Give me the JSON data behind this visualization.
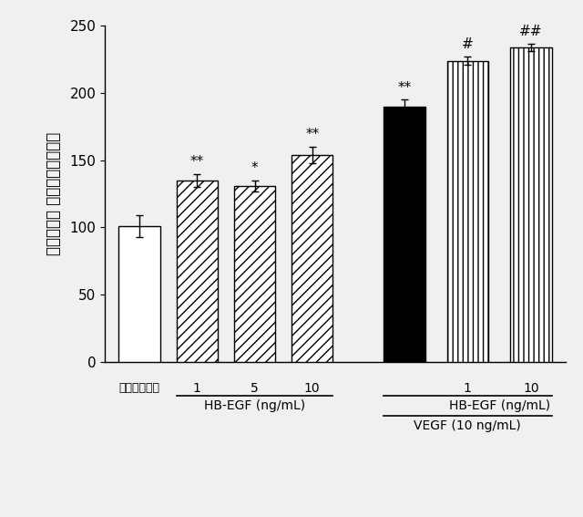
{
  "bars": [
    {
      "label": "コントロール",
      "value": 101,
      "error": 8,
      "hatch": "",
      "color": "white",
      "edgecolor": "black"
    },
    {
      "label": "1",
      "value": 135,
      "error": 5,
      "hatch": "////",
      "color": "white",
      "edgecolor": "black"
    },
    {
      "label": "5",
      "value": 131,
      "error": 4,
      "hatch": "////",
      "color": "white",
      "edgecolor": "black"
    },
    {
      "label": "10",
      "value": 154,
      "error": 6,
      "hatch": "////",
      "color": "white",
      "edgecolor": "black"
    },
    {
      "label": "",
      "value": 190,
      "error": 5,
      "hatch": "",
      "color": "black",
      "edgecolor": "black"
    },
    {
      "label": "1",
      "value": 224,
      "error": 3,
      "hatch": "||||",
      "color": "white",
      "edgecolor": "black"
    },
    {
      "label": "10",
      "value": 234,
      "error": 3,
      "hatch": "||||",
      "color": "white",
      "edgecolor": "black"
    }
  ],
  "sig_labels": [
    "**",
    "*",
    "**",
    "**",
    "#",
    "##"
  ],
  "sig_bar_indices": [
    1,
    2,
    3,
    4,
    5,
    6
  ],
  "ylim": [
    0,
    250
  ],
  "yticks": [
    0,
    50,
    100,
    150,
    200,
    250
  ],
  "ylabel": "増殖率（％ 対コントロール）",
  "group1_label": "HB-EGF (ng/mL)",
  "group2_label_top": "HB-EGF (ng/mL)",
  "group2_label_bottom": "VEGF (10 ng/mL)",
  "control_label": "コントロール",
  "background_color": "#f0f0f0",
  "bar_width": 0.72,
  "x_positions": [
    0,
    1,
    2,
    3,
    4.6,
    5.7,
    6.8
  ],
  "figsize": [
    6.4,
    5.67
  ],
  "dpi": 100
}
